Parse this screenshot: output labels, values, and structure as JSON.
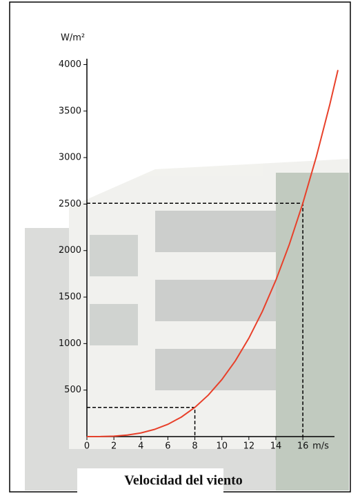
{
  "chart_data": {
    "type": "line",
    "y_label": "W/m²",
    "x_label": "m/s",
    "caption": "Velocidad del viento",
    "x": [
      0,
      1,
      2,
      3,
      4,
      5,
      6,
      7,
      8,
      9,
      10,
      11,
      12,
      13,
      14,
      15,
      16,
      17,
      18,
      18.6
    ],
    "series": [
      {
        "color": "#e8402a",
        "values": [
          0,
          0.6,
          5,
          17,
          39,
          77,
          132,
          210,
          314,
          447,
          613,
          815,
          1058,
          1346,
          1681,
          2067,
          2509,
          3009,
          3572,
          3941
        ]
      }
    ],
    "guides": {
      "x": [
        8,
        16
      ],
      "y": [
        314,
        2509
      ]
    },
    "xlim": [
      0,
      18.6
    ],
    "ylim": [
      0,
      4100
    ],
    "xticks": [
      0,
      2,
      4,
      6,
      8,
      10,
      12,
      14,
      16
    ],
    "yticks": [
      500,
      1000,
      1500,
      2000,
      2500,
      3000,
      3500,
      4000
    ]
  }
}
